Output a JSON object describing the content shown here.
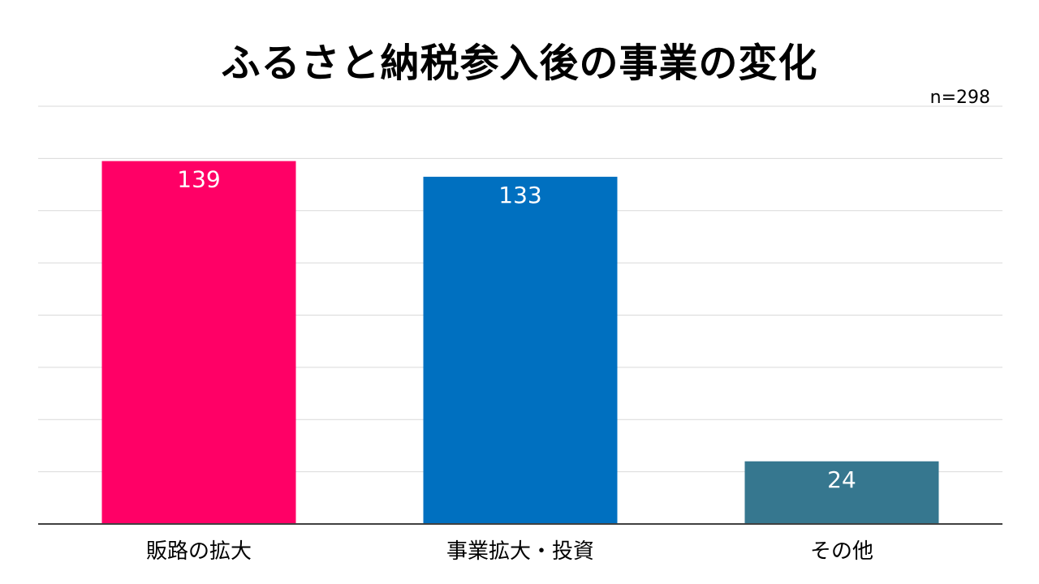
{
  "title": "ふるさと納税参入後の事業の変化",
  "sample_size": "n=298",
  "chart_data": {
    "type": "bar",
    "title": "ふるさと納税参入後の事業の変化",
    "categories": [
      "販路の拡大",
      "事業拡大・投資",
      "その他"
    ],
    "values": [
      139,
      133,
      24
    ],
    "value_labels": [
      "139",
      "133",
      "24"
    ],
    "colors": [
      "#ff0066",
      "#0070c0",
      "#36778f"
    ],
    "xlabel": "",
    "ylabel": "",
    "ylim": [
      0,
      160
    ],
    "grid": true,
    "legend": "none"
  }
}
